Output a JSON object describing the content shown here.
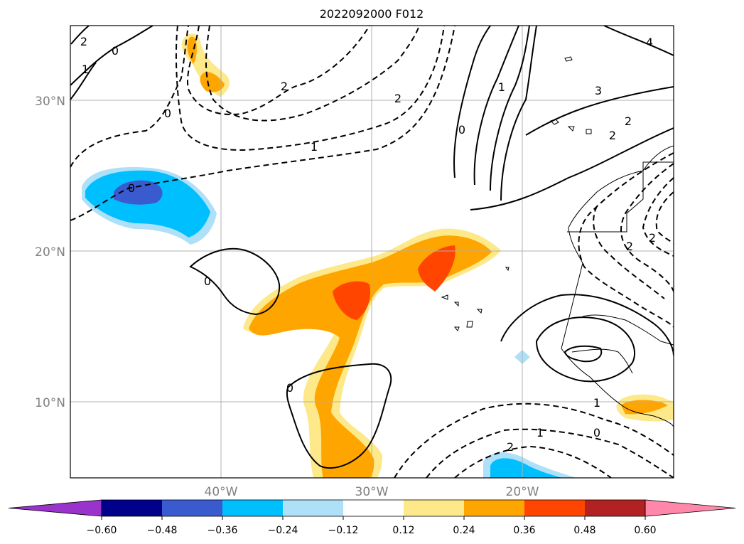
{
  "title": "2022092000 F012",
  "lat_labels": [
    "30°N",
    "20°N",
    "10°N"
  ],
  "lon_labels": [
    "40°W",
    "30°W",
    "20°W"
  ],
  "colorbar": {
    "tick_labels": [
      "−0.60",
      "−0.48",
      "−0.36",
      "−0.24",
      "−0.12",
      "0.12",
      "0.24",
      "0.36",
      "0.48",
      "0.60"
    ],
    "colors": [
      "#9933cc",
      "#00008b",
      "#3a5bd0",
      "#00bfff",
      "#aee0f8",
      "#ffffff",
      "#fde98a",
      "#ffa500",
      "#ff4500",
      "#b22222",
      "#ff88aa"
    ]
  },
  "contour_labels": [
    "2",
    "1",
    "0",
    "0",
    "2",
    "1",
    "0",
    "2",
    "1",
    "0",
    "0",
    "0",
    "1",
    "3",
    "4",
    "2",
    "2",
    "2",
    "2",
    "0",
    "1",
    "2"
  ],
  "colors": {
    "dashed": "#000000",
    "solid": "#000000",
    "grid": "#b0b0b0"
  }
}
